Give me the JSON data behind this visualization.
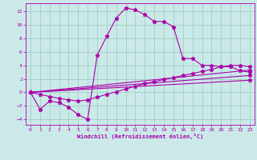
{
  "bg_color": "#cbe9e9",
  "line_color": "#aa00aa",
  "grid_color": "#99ccbb",
  "xlabel": "Windchill (Refroidissement éolien,°C)",
  "xlim": [
    -0.5,
    23.5
  ],
  "ylim": [
    -4.8,
    13.2
  ],
  "yticks": [
    -4,
    -2,
    0,
    2,
    4,
    6,
    8,
    10,
    12
  ],
  "xticks": [
    0,
    1,
    2,
    3,
    4,
    5,
    6,
    7,
    8,
    9,
    10,
    11,
    12,
    13,
    14,
    15,
    16,
    17,
    18,
    19,
    20,
    21,
    22,
    23
  ],
  "curve1_x": [
    0,
    1,
    2,
    3,
    4,
    5,
    6,
    7,
    8,
    9,
    10,
    11,
    12,
    13,
    14,
    15,
    16,
    17,
    18,
    19,
    20,
    21,
    22,
    23
  ],
  "curve1_y": [
    0,
    -2.5,
    -1.3,
    -1.5,
    -2.2,
    -3.3,
    -4.0,
    5.5,
    8.3,
    11.0,
    12.5,
    12.2,
    11.5,
    10.5,
    10.5,
    9.7,
    5.0,
    5.0,
    4.0,
    4.0,
    3.8,
    3.8,
    3.2,
    3.0
  ],
  "curve2_x": [
    0,
    1,
    2,
    3,
    4,
    5,
    6,
    7,
    8,
    9,
    10,
    11,
    12,
    13,
    14,
    15,
    16,
    17,
    18,
    19,
    20,
    21,
    22,
    23
  ],
  "curve2_y": [
    0,
    -0.3,
    -0.6,
    -0.9,
    -1.1,
    -1.3,
    -1.1,
    -0.7,
    -0.3,
    0.1,
    0.5,
    0.9,
    1.3,
    1.6,
    1.9,
    2.2,
    2.5,
    2.8,
    3.1,
    3.4,
    3.8,
    4.0,
    4.0,
    3.8
  ],
  "curve3_x": [
    0,
    23
  ],
  "curve3_y": [
    0,
    3.3
  ],
  "curve4_x": [
    0,
    23
  ],
  "curve4_y": [
    0,
    2.5
  ],
  "curve5_x": [
    0,
    23
  ],
  "curve5_y": [
    0,
    1.8
  ]
}
